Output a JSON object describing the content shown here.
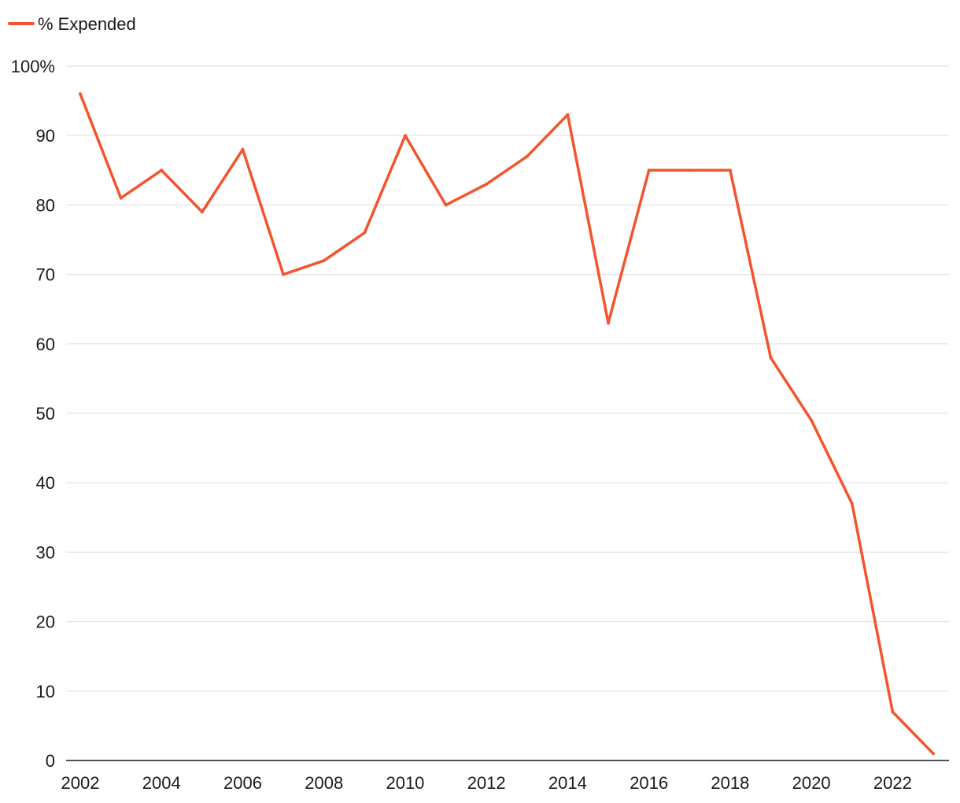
{
  "chart_data": {
    "type": "line",
    "title": "",
    "xlabel": "",
    "ylabel": "",
    "legend": {
      "placement": "top-left",
      "entries": [
        "% Expended"
      ]
    },
    "series": [
      {
        "name": "% Expended",
        "color": "#f4542d",
        "x": [
          2002,
          2003,
          2004,
          2005,
          2006,
          2007,
          2008,
          2009,
          2010,
          2011,
          2012,
          2013,
          2014,
          2015,
          2016,
          2017,
          2018,
          2019,
          2020,
          2021,
          2022,
          2023
        ],
        "values": [
          96,
          81,
          85,
          79,
          88,
          70,
          72,
          76,
          90,
          80,
          83,
          87,
          93,
          63,
          85,
          85,
          85,
          58,
          49,
          37,
          7,
          1
        ]
      }
    ],
    "xlim": [
      2002,
      2023
    ],
    "ylim": [
      0,
      100
    ],
    "x_ticks": [
      2002,
      2004,
      2006,
      2008,
      2010,
      2012,
      2014,
      2016,
      2018,
      2020,
      2022
    ],
    "y_ticks": [
      0,
      10,
      20,
      30,
      40,
      50,
      60,
      70,
      80,
      90,
      100
    ],
    "y_tick_labels": [
      "0",
      "10",
      "20",
      "30",
      "40",
      "50",
      "60",
      "70",
      "80",
      "90",
      "100%"
    ],
    "grid": {
      "horizontal": true,
      "vertical": false,
      "color": "#e3e3e3"
    }
  }
}
